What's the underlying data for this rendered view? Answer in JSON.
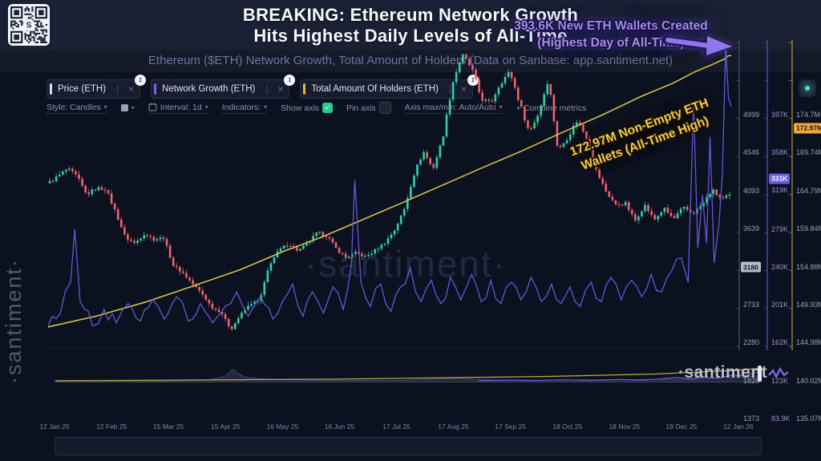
{
  "header": {
    "title_line1": "BREAKING: Ethereum Network Growth",
    "title_line2": "Hits Highest Daily Levels of All-Time",
    "subtitle": "Ethereum ($ETH) Network Growth, Total Amount of Holders (Data on Sanbase: app.santiment.net)"
  },
  "watermarks": {
    "left": "·santiment·",
    "center": "·santiment·",
    "logo": "·santiment"
  },
  "icons": {
    "caret": "▾",
    "kebab": "⋮",
    "close": "×",
    "check": "✓",
    "sort_up": "▴",
    "sort_down": "▾",
    "plus": "+"
  },
  "tabs": [
    {
      "label": "Price (ETH)",
      "accent": "#d7dbe8"
    },
    {
      "label": "Network Growth (ETH)",
      "accent": "#7b61e4"
    },
    {
      "label": "Total Amount Of Holders (ETH)",
      "accent": "#e7b93c"
    }
  ],
  "toolbar": {
    "style_label": "Style: Candles",
    "interval_label": "Interval: 1d",
    "indicators_label": "Indicators:",
    "show_axis_label": "Show axis",
    "show_axis_checked": true,
    "pin_axis_label": "Pin axis",
    "pin_axis_checked": false,
    "axis_maxmin_label": "Axis max/min: Auto/Auto",
    "combine_label": "+ Combine metrics"
  },
  "annotations": {
    "wallets_created_line1": "393.6K New ETH Wallets Created",
    "wallets_created_line2": "(Highest Day of All-Time)",
    "nonempty_line1": "172.97M Non-Empty ETH",
    "nonempty_line2": "Wallets (All-Time High)"
  },
  "axes": {
    "price": {
      "ticks": [
        "4999",
        "4546",
        "4093",
        "3639",
        "2733",
        "2280",
        "1826",
        "1373"
      ],
      "tick_values": [
        4999,
        4546,
        4093,
        3639,
        2733,
        2280,
        1826,
        1373
      ],
      "badge": "3180",
      "badge_value": 3180,
      "range": [
        1373,
        4999
      ],
      "label_color": "#9aa2b5",
      "line_color": "#4a5270"
    },
    "network_growth": {
      "ticks": [
        "397K",
        "358K",
        "319K",
        "279K",
        "240K",
        "201K",
        "162K",
        "123K",
        "83.9K"
      ],
      "tick_values": [
        397,
        358,
        319,
        279,
        240,
        201,
        162,
        123,
        83.9
      ],
      "badge": "331K",
      "badge_value": 331,
      "range": [
        83.9,
        397
      ],
      "label_color": "#9a94c4",
      "line_color": "#5b4fc0"
    },
    "holders": {
      "ticks": [
        "174.7M",
        "169.74M",
        "164.79M",
        "159.84M",
        "154.88M",
        "149.93M",
        "144.98M",
        "140.02M",
        "135.07M"
      ],
      "tick_values": [
        174.7,
        169.74,
        164.79,
        159.84,
        154.88,
        149.93,
        144.98,
        140.02,
        135.07
      ],
      "badge": "172.97M",
      "badge_value": 172.97,
      "range": [
        135.07,
        174.7
      ],
      "label_color": "#9aa2b5",
      "line_color": "#b3953a"
    },
    "x": {
      "labels": [
        "12 Jan 25",
        "12 Feb 25",
        "15 Mar 25",
        "15 Apr 25",
        "16 May 25",
        "16 Jun 25",
        "17 Jul 25",
        "17 Aug 25",
        "17 Sep 25",
        "18 Oct 25",
        "18 Nov 25",
        "19 Dec 25",
        "12 Jan 26"
      ]
    }
  },
  "colors": {
    "candle_up": "#31d0aa",
    "candle_down": "#f0636c",
    "network_growth": "#6b5ae0",
    "holders": "#d6c14d",
    "grid": "rgba(120,130,170,0.10)"
  },
  "chart_data": {
    "type": "mixed",
    "x_range": [
      "12 Jan 25",
      "12 Jan 26"
    ],
    "series": [
      {
        "name": "Price (ETH)",
        "type": "candlestick",
        "axis": "price",
        "unit": "USD",
        "current": 3180,
        "values_evenly_spaced": [
          3320,
          3400,
          3490,
          3400,
          3180,
          3260,
          3250,
          2980,
          2680,
          2600,
          2720,
          2650,
          2670,
          2340,
          2250,
          2120,
          2000,
          1840,
          1780,
          1570,
          1750,
          1880,
          1920,
          2350,
          2520,
          2600,
          2510,
          2610,
          2730,
          2690,
          2530,
          2430,
          2490,
          2440,
          2520,
          2610,
          2760,
          3000,
          3420,
          3700,
          3490,
          3850,
          4500,
          4850,
          4700,
          4330,
          4270,
          4520,
          4650,
          4280,
          3930,
          4160,
          4570,
          3700,
          3870,
          4070,
          3860,
          3460,
          3220,
          3060,
          3080,
          2870,
          3060,
          2880,
          3020,
          2890,
          3030,
          2960,
          3060,
          3240,
          3130,
          3180
        ]
      },
      {
        "name": "Network Growth (ETH)",
        "type": "line",
        "axis": "network_growth",
        "unit": "K addresses",
        "peak": 393.6,
        "current": 331,
        "points": [
          [
            0,
            105
          ],
          [
            0.018,
            118
          ],
          [
            0.033,
            150
          ],
          [
            0.039,
            205
          ],
          [
            0.047,
            130
          ],
          [
            0.065,
            105
          ],
          [
            0.082,
            122
          ],
          [
            0.1,
            108
          ],
          [
            0.117,
            128
          ],
          [
            0.135,
            110
          ],
          [
            0.153,
            132
          ],
          [
            0.17,
            112
          ],
          [
            0.188,
            135
          ],
          [
            0.205,
            110
          ],
          [
            0.223,
            128
          ],
          [
            0.241,
            108
          ],
          [
            0.259,
            125
          ],
          [
            0.276,
            140
          ],
          [
            0.293,
            115
          ],
          [
            0.311,
            135
          ],
          [
            0.329,
            112
          ],
          [
            0.343,
            130
          ],
          [
            0.358,
            148
          ],
          [
            0.373,
            115
          ],
          [
            0.387,
            140
          ],
          [
            0.403,
            118
          ],
          [
            0.417,
            145
          ],
          [
            0.432,
            122
          ],
          [
            0.444,
            168
          ],
          [
            0.449,
            255
          ],
          [
            0.458,
            150
          ],
          [
            0.472,
            125
          ],
          [
            0.487,
            148
          ],
          [
            0.502,
            120
          ],
          [
            0.516,
            145
          ],
          [
            0.53,
            165
          ],
          [
            0.546,
            130
          ],
          [
            0.561,
            152
          ],
          [
            0.575,
            128
          ],
          [
            0.589,
            155
          ],
          [
            0.604,
            132
          ],
          [
            0.62,
            158
          ],
          [
            0.634,
            130
          ],
          [
            0.648,
            152
          ],
          [
            0.663,
            128
          ],
          [
            0.678,
            150
          ],
          [
            0.692,
            132
          ],
          [
            0.707,
            155
          ],
          [
            0.722,
            130
          ],
          [
            0.737,
            148
          ],
          [
            0.751,
            128
          ],
          [
            0.764,
            145
          ],
          [
            0.779,
            125
          ],
          [
            0.795,
            150
          ],
          [
            0.81,
            130
          ],
          [
            0.824,
            155
          ],
          [
            0.839,
            132
          ],
          [
            0.854,
            152
          ],
          [
            0.869,
            135
          ],
          [
            0.883,
            158
          ],
          [
            0.898,
            140
          ],
          [
            0.913,
            162
          ],
          [
            0.927,
            175
          ],
          [
            0.937,
            150
          ],
          [
            0.945,
            335
          ],
          [
            0.951,
            185
          ],
          [
            0.958,
            240
          ],
          [
            0.964,
            190
          ],
          [
            0.969,
            300
          ],
          [
            0.975,
            170
          ],
          [
            0.982,
            210
          ],
          [
            0.987,
            260
          ],
          [
            0.992,
            393.6
          ],
          [
            0.996,
            340
          ],
          [
            1,
            331
          ]
        ]
      },
      {
        "name": "Total Amount Of Holders (ETH)",
        "type": "line",
        "axis": "holders",
        "unit": "M addresses",
        "current": 172.97,
        "points": [
          [
            0,
            137.6
          ],
          [
            0.07,
            139
          ],
          [
            0.141,
            140.8
          ],
          [
            0.211,
            142.9
          ],
          [
            0.282,
            145.1
          ],
          [
            0.343,
            147.4
          ],
          [
            0.4,
            149.3
          ],
          [
            0.458,
            151.5
          ],
          [
            0.516,
            153.7
          ],
          [
            0.575,
            156
          ],
          [
            0.634,
            158.3
          ],
          [
            0.692,
            160.5
          ],
          [
            0.751,
            162.9
          ],
          [
            0.81,
            165.2
          ],
          [
            0.869,
            167.7
          ],
          [
            0.915,
            169.4
          ],
          [
            0.945,
            170.8
          ],
          [
            0.974,
            171.9
          ],
          [
            0.989,
            172.5
          ],
          [
            0.996,
            172.97
          ],
          [
            1,
            173
          ]
        ]
      }
    ],
    "minimap": {
      "area": [
        [
          0,
          0.05
        ],
        [
          0.15,
          0.06
        ],
        [
          0.2,
          0.1
        ],
        [
          0.22,
          0.15
        ],
        [
          0.24,
          0.35
        ],
        [
          0.252,
          0.8
        ],
        [
          0.26,
          0.5
        ],
        [
          0.27,
          0.3
        ],
        [
          0.29,
          0.2
        ],
        [
          0.32,
          0.15
        ],
        [
          0.36,
          0.12
        ],
        [
          0.42,
          0.1
        ],
        [
          0.5,
          0.12
        ],
        [
          0.55,
          0.2
        ],
        [
          0.57,
          0.25
        ],
        [
          0.59,
          0.18
        ],
        [
          0.63,
          0.12
        ],
        [
          0.7,
          0.12
        ],
        [
          0.76,
          0.13
        ],
        [
          0.82,
          0.15
        ],
        [
          0.86,
          0.18
        ],
        [
          0.9,
          0.15
        ],
        [
          0.93,
          0.2
        ],
        [
          0.95,
          0.35
        ],
        [
          0.97,
          0.3
        ],
        [
          1,
          0.4
        ]
      ],
      "network_growth": [
        [
          0.6,
          0.08
        ],
        [
          0.64,
          0.12
        ],
        [
          0.68,
          0.09
        ],
        [
          0.72,
          0.14
        ],
        [
          0.76,
          0.1
        ],
        [
          0.8,
          0.16
        ],
        [
          0.83,
          0.12
        ],
        [
          0.86,
          0.2
        ],
        [
          0.88,
          0.28
        ],
        [
          0.9,
          0.2
        ],
        [
          0.92,
          0.3
        ],
        [
          0.94,
          0.24
        ],
        [
          0.96,
          0.45
        ],
        [
          0.975,
          0.38
        ],
        [
          0.99,
          0.55
        ],
        [
          1,
          0.6
        ]
      ],
      "holders": [
        [
          0,
          0.08
        ],
        [
          0.4,
          0.18
        ],
        [
          0.7,
          0.35
        ],
        [
          0.85,
          0.5
        ],
        [
          0.95,
          0.7
        ],
        [
          1,
          0.85
        ]
      ]
    }
  }
}
